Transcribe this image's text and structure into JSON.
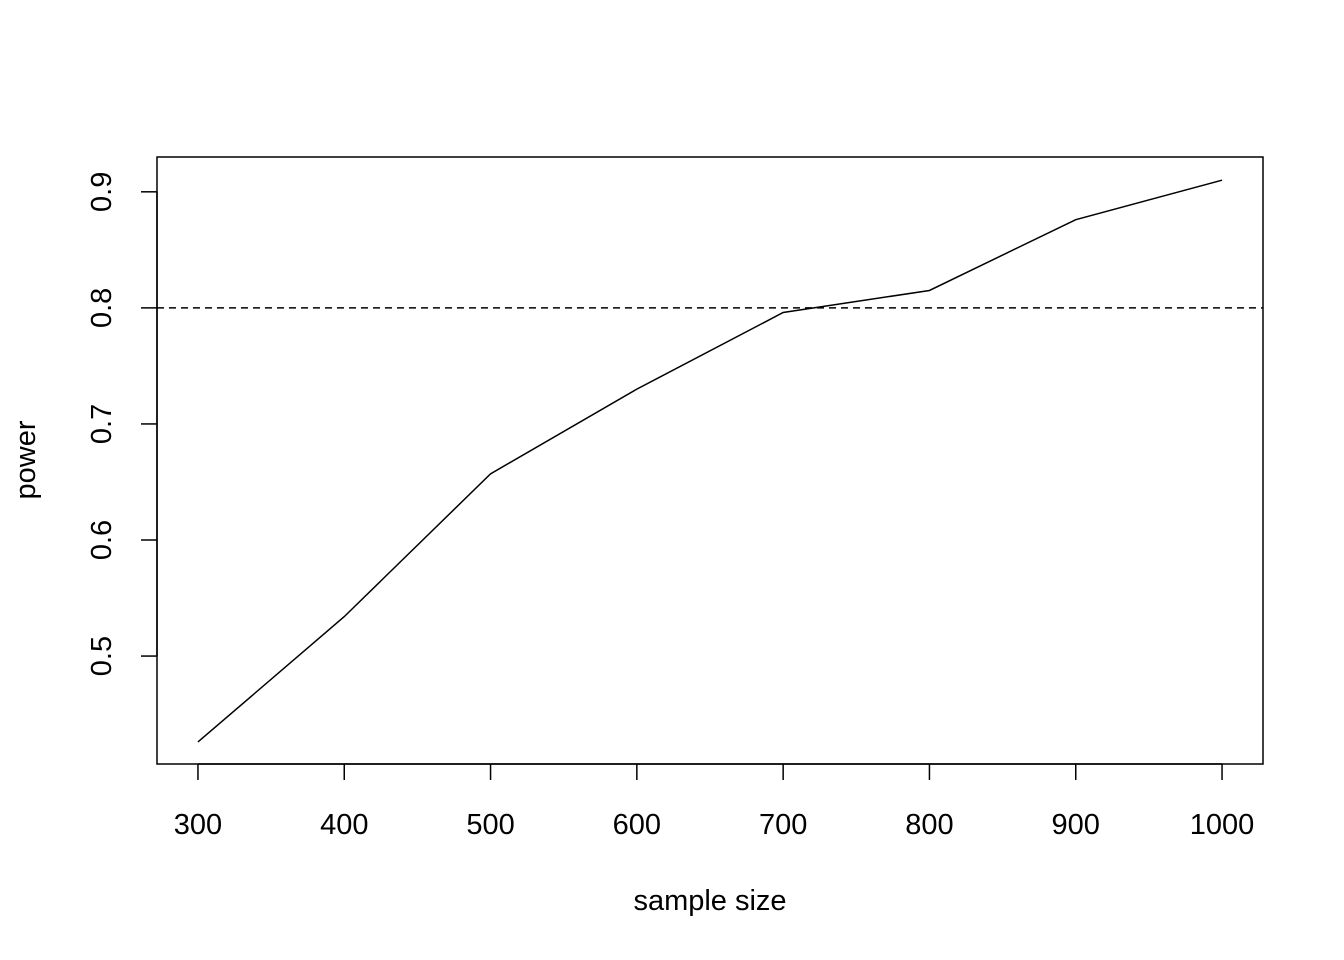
{
  "chart_data": {
    "type": "line",
    "title": "",
    "xlabel": "sample size",
    "ylabel": "power",
    "x": [
      300,
      400,
      500,
      600,
      700,
      800,
      900,
      1000
    ],
    "series": [
      {
        "values": [
          0.426,
          0.534,
          0.657,
          0.73,
          0.796,
          0.815,
          0.876,
          0.91
        ]
      }
    ],
    "reference_line": {
      "y": 0.8,
      "style": "dashed"
    },
    "xlim": [
      272,
      1028
    ],
    "ylim": [
      0.407,
      0.93
    ],
    "xticks": [
      300,
      400,
      500,
      600,
      700,
      800,
      900,
      1000
    ],
    "xtick_labels": [
      "300",
      "400",
      "500",
      "600",
      "700",
      "800",
      "900",
      "1000"
    ],
    "yticks": [
      0.5,
      0.6,
      0.7,
      0.8,
      0.9
    ],
    "ytick_labels": [
      "0.5",
      "0.6",
      "0.7",
      "0.8",
      "0.9"
    ],
    "grid": false,
    "legend": "none",
    "colors": {
      "line": "#000000",
      "background": "#ffffff"
    }
  }
}
